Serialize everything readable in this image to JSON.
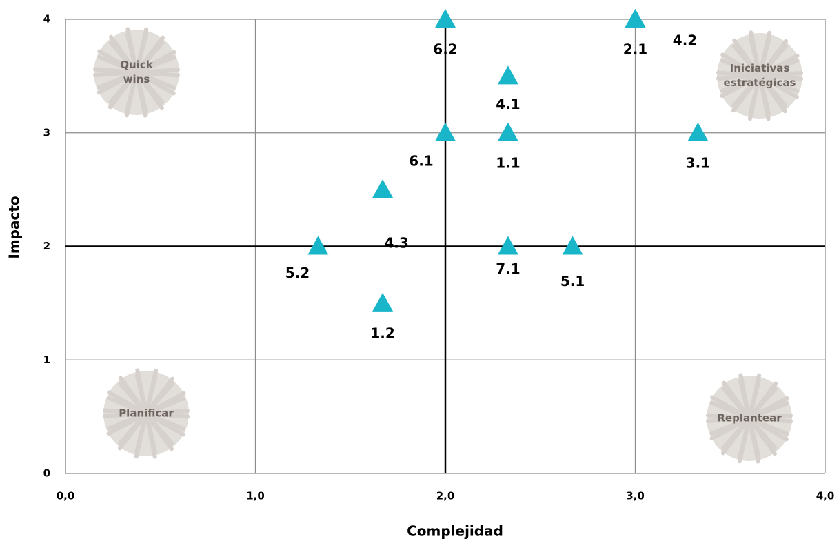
{
  "chart_data": {
    "type": "scatter",
    "x_label": "Complejidad",
    "y_label": "Impacto",
    "xlim": [
      0,
      4
    ],
    "ylim": [
      0,
      4
    ],
    "xticks": [
      {
        "value": 0,
        "label": "0,0"
      },
      {
        "value": 1,
        "label": "1,0"
      },
      {
        "value": 2,
        "label": "2,0"
      },
      {
        "value": 3,
        "label": "3,0"
      },
      {
        "value": 4,
        "label": "4,0"
      }
    ],
    "yticks": [
      0,
      1,
      2,
      3,
      4
    ],
    "grid": true,
    "reference_lines": {
      "x": 2,
      "y": 2
    },
    "color": "#19b5c9",
    "point_labels": [
      "6.2",
      "2.1",
      "4.2",
      "4.1",
      "6.1",
      "1.1",
      "3.1",
      "4.3",
      "5.2",
      "7.1",
      "5.1",
      "1.2"
    ],
    "x": [
      2,
      3,
      3,
      2.33,
      2,
      2.33,
      3.33,
      1.67,
      1.33,
      2.33,
      2.67,
      1.67
    ],
    "values": [
      4,
      4,
      4,
      3.5,
      3,
      3,
      3,
      2.5,
      2,
      2,
      2,
      1.5
    ],
    "quadrant_labels": [
      [
        "Quick",
        "wins"
      ],
      [
        "Iniciativas",
        "estratégicas"
      ],
      [
        "Planificar"
      ],
      [
        "Replantear"
      ]
    ]
  }
}
